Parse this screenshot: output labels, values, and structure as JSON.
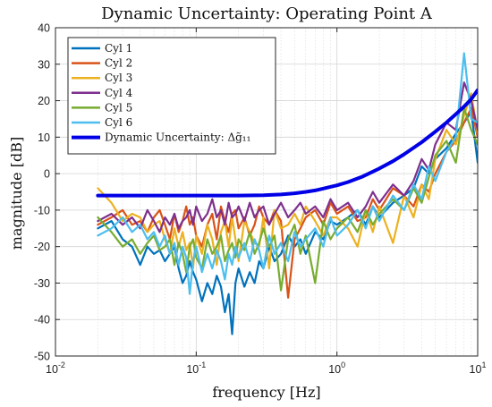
{
  "chart_data": {
    "type": "line",
    "title": "Dynamic Uncertainty: Operating Point A",
    "xlabel": "frequency [Hz]",
    "ylabel": "magnitude [dB]",
    "x_scale": "log",
    "xlim": [
      0.01,
      10
    ],
    "ylim": [
      -50,
      40
    ],
    "y_ticks": [
      -50,
      -40,
      -30,
      -20,
      -10,
      0,
      10,
      20,
      30,
      40
    ],
    "x_ticks": [
      {
        "base": "10",
        "exp": "-2"
      },
      {
        "base": "10",
        "exp": "-1"
      },
      {
        "base": "10",
        "exp": "0"
      },
      {
        "base": "10",
        "exp": "1"
      }
    ],
    "grid": true,
    "legend_position": "top-left",
    "series": [
      {
        "name": "Cyl 1",
        "color": "#0072BD",
        "x": [
          0.02,
          0.025,
          0.03,
          0.035,
          0.04,
          0.045,
          0.05,
          0.055,
          0.06,
          0.065,
          0.07,
          0.075,
          0.08,
          0.085,
          0.09,
          0.095,
          0.1,
          0.11,
          0.12,
          0.13,
          0.14,
          0.15,
          0.16,
          0.17,
          0.18,
          0.19,
          0.2,
          0.22,
          0.24,
          0.26,
          0.28,
          0.3,
          0.33,
          0.36,
          0.4,
          0.45,
          0.5,
          0.55,
          0.6,
          0.7,
          0.8,
          0.9,
          1.0,
          1.2,
          1.4,
          1.6,
          1.8,
          2.0,
          2.5,
          3.0,
          3.5,
          4.0,
          4.5,
          5.0,
          6.0,
          7.0,
          8.0,
          9.0,
          10.0
        ],
        "y": [
          -15,
          -13,
          -18,
          -20,
          -25,
          -20,
          -22,
          -21,
          -24,
          -22,
          -20,
          -26,
          -30,
          -28,
          -24,
          -27,
          -29,
          -35,
          -30,
          -33,
          -28,
          -31,
          -38,
          -33,
          -44,
          -30,
          -26,
          -31,
          -27,
          -30,
          -24,
          -26,
          -20,
          -24,
          -22,
          -17,
          -20,
          -18,
          -22,
          -16,
          -18,
          -13,
          -14,
          -12,
          -10,
          -14,
          -9,
          -12,
          -8,
          -6,
          -4,
          2,
          0,
          4,
          7,
          11,
          14,
          17,
          3
        ]
      },
      {
        "name": "Cyl 2",
        "color": "#D95319",
        "x": [
          0.02,
          0.025,
          0.03,
          0.035,
          0.04,
          0.045,
          0.05,
          0.055,
          0.06,
          0.065,
          0.07,
          0.075,
          0.08,
          0.085,
          0.09,
          0.095,
          0.1,
          0.11,
          0.12,
          0.13,
          0.14,
          0.15,
          0.16,
          0.17,
          0.18,
          0.19,
          0.2,
          0.22,
          0.24,
          0.26,
          0.28,
          0.3,
          0.33,
          0.36,
          0.4,
          0.45,
          0.5,
          0.55,
          0.6,
          0.7,
          0.8,
          0.9,
          1.0,
          1.2,
          1.4,
          1.6,
          1.8,
          2.0,
          2.5,
          3.0,
          3.5,
          4.0,
          4.5,
          5.0,
          6.0,
          7.0,
          8.0,
          9.0,
          10.0
        ],
        "y": [
          -14,
          -12,
          -10,
          -14,
          -13,
          -16,
          -12,
          -10,
          -14,
          -18,
          -11,
          -16,
          -13,
          -9,
          -14,
          -12,
          -17,
          -20,
          -14,
          -11,
          -18,
          -9,
          -13,
          -16,
          -11,
          -10,
          -15,
          -12,
          -17,
          -14,
          -9,
          -12,
          -14,
          -10,
          -13,
          -34,
          -18,
          -15,
          -12,
          -10,
          -14,
          -8,
          -11,
          -9,
          -13,
          -12,
          -7,
          -10,
          -4,
          -6,
          -9,
          -3,
          -5,
          0,
          6,
          9,
          14,
          18,
          10
        ]
      },
      {
        "name": "Cyl 3",
        "color": "#EDB120",
        "x": [
          0.02,
          0.025,
          0.03,
          0.035,
          0.04,
          0.045,
          0.05,
          0.055,
          0.06,
          0.065,
          0.07,
          0.075,
          0.08,
          0.085,
          0.09,
          0.095,
          0.1,
          0.11,
          0.12,
          0.13,
          0.14,
          0.15,
          0.16,
          0.17,
          0.18,
          0.19,
          0.2,
          0.22,
          0.24,
          0.26,
          0.28,
          0.3,
          0.33,
          0.36,
          0.4,
          0.45,
          0.5,
          0.55,
          0.6,
          0.7,
          0.8,
          0.9,
          1.0,
          1.2,
          1.4,
          1.6,
          1.8,
          2.0,
          2.5,
          3.0,
          3.5,
          4.0,
          4.5,
          5.0,
          6.0,
          7.0,
          8.0,
          9.0,
          10.0
        ],
        "y": [
          -4,
          -8,
          -13,
          -11,
          -12,
          -16,
          -14,
          -13,
          -18,
          -22,
          -15,
          -20,
          -16,
          -21,
          -19,
          -26,
          -17,
          -22,
          -14,
          -18,
          -25,
          -16,
          -13,
          -20,
          -12,
          -18,
          -24,
          -13,
          -16,
          -19,
          -20,
          -12,
          -26,
          -10,
          -15,
          -14,
          -11,
          -14,
          -9,
          -13,
          -17,
          -12,
          -12,
          -15,
          -20,
          -10,
          -16,
          -9,
          -19,
          -6,
          -12,
          -3,
          -7,
          4,
          12,
          8,
          16,
          22,
          11
        ]
      },
      {
        "name": "Cyl 4",
        "color": "#7E2F8E",
        "x": [
          0.02,
          0.025,
          0.03,
          0.035,
          0.04,
          0.045,
          0.05,
          0.055,
          0.06,
          0.065,
          0.07,
          0.075,
          0.08,
          0.085,
          0.09,
          0.095,
          0.1,
          0.11,
          0.12,
          0.13,
          0.14,
          0.15,
          0.16,
          0.17,
          0.18,
          0.19,
          0.2,
          0.22,
          0.24,
          0.26,
          0.28,
          0.3,
          0.33,
          0.36,
          0.4,
          0.45,
          0.5,
          0.55,
          0.6,
          0.7,
          0.8,
          0.9,
          1.0,
          1.2,
          1.4,
          1.6,
          1.8,
          2.0,
          2.5,
          3.0,
          3.5,
          4.0,
          4.5,
          5.0,
          6.0,
          7.0,
          8.0,
          9.0,
          10.0
        ],
        "y": [
          -13,
          -11,
          -14,
          -12,
          -15,
          -10,
          -13,
          -16,
          -12,
          -14,
          -11,
          -15,
          -13,
          -12,
          -10,
          -14,
          -9,
          -13,
          -11,
          -7,
          -12,
          -10,
          -14,
          -8,
          -12,
          -11,
          -9,
          -13,
          -8,
          -12,
          -10,
          -9,
          -14,
          -11,
          -8,
          -12,
          -10,
          -8,
          -11,
          -9,
          -12,
          -7,
          -10,
          -8,
          -12,
          -9,
          -5,
          -8,
          -3,
          -6,
          -2,
          4,
          1,
          8,
          14,
          12,
          25,
          20,
          12
        ]
      },
      {
        "name": "Cyl 5",
        "color": "#77AC30",
        "x": [
          0.02,
          0.025,
          0.03,
          0.035,
          0.04,
          0.045,
          0.05,
          0.055,
          0.06,
          0.065,
          0.07,
          0.075,
          0.08,
          0.085,
          0.09,
          0.095,
          0.1,
          0.11,
          0.12,
          0.13,
          0.14,
          0.15,
          0.16,
          0.17,
          0.18,
          0.19,
          0.2,
          0.22,
          0.24,
          0.26,
          0.28,
          0.3,
          0.33,
          0.36,
          0.4,
          0.45,
          0.5,
          0.55,
          0.6,
          0.7,
          0.8,
          0.9,
          1.0,
          1.2,
          1.4,
          1.6,
          1.8,
          2.0,
          2.5,
          3.0,
          3.5,
          4.0,
          4.5,
          5.0,
          6.0,
          7.0,
          8.0,
          9.0,
          10.0
        ],
        "y": [
          -12,
          -16,
          -20,
          -18,
          -22,
          -19,
          -17,
          -21,
          -20,
          -18,
          -25,
          -19,
          -22,
          -27,
          -20,
          -18,
          -23,
          -26,
          -18,
          -22,
          -20,
          -17,
          -24,
          -21,
          -19,
          -23,
          -18,
          -21,
          -16,
          -22,
          -19,
          -15,
          -20,
          -17,
          -32,
          -18,
          -14,
          -22,
          -17,
          -30,
          -13,
          -18,
          -15,
          -12,
          -16,
          -10,
          -14,
          -11,
          -7,
          -10,
          -4,
          -8,
          -1,
          5,
          9,
          3,
          18,
          12,
          8
        ]
      },
      {
        "name": "Cyl 6",
        "color": "#4DBEEE",
        "x": [
          0.02,
          0.025,
          0.03,
          0.035,
          0.04,
          0.045,
          0.05,
          0.055,
          0.06,
          0.065,
          0.07,
          0.075,
          0.08,
          0.085,
          0.09,
          0.095,
          0.1,
          0.11,
          0.12,
          0.13,
          0.14,
          0.15,
          0.16,
          0.17,
          0.18,
          0.19,
          0.2,
          0.22,
          0.24,
          0.26,
          0.28,
          0.3,
          0.33,
          0.36,
          0.4,
          0.45,
          0.5,
          0.55,
          0.6,
          0.7,
          0.8,
          0.9,
          1.0,
          1.2,
          1.4,
          1.6,
          1.8,
          2.0,
          2.5,
          3.0,
          3.5,
          4.0,
          4.5,
          5.0,
          6.0,
          7.0,
          8.0,
          9.0,
          10.0
        ],
        "y": [
          -17,
          -15,
          -12,
          -16,
          -14,
          -18,
          -16,
          -20,
          -17,
          -22,
          -19,
          -25,
          -20,
          -23,
          -33,
          -24,
          -20,
          -27,
          -22,
          -26,
          -21,
          -24,
          -29,
          -22,
          -25,
          -20,
          -23,
          -19,
          -24,
          -18,
          -21,
          -26,
          -17,
          -22,
          -19,
          -24,
          -16,
          -20,
          -18,
          -15,
          -20,
          -12,
          -17,
          -14,
          -10,
          -15,
          -9,
          -13,
          -6,
          -10,
          -3,
          -7,
          2,
          -2,
          6,
          10,
          33,
          15,
          14
        ]
      },
      {
        "name": "Dynamic Uncertainty: Δg̃₁₁",
        "color": "#0000E6",
        "x": [
          0.02,
          0.03,
          0.05,
          0.07,
          0.1,
          0.15,
          0.2,
          0.3,
          0.4,
          0.5,
          0.6,
          0.7,
          0.8,
          1.0,
          1.2,
          1.5,
          2.0,
          2.5,
          3.0,
          4.0,
          5.0,
          6.0,
          7.0,
          8.0,
          9.0,
          10.0
        ],
        "y": [
          -6,
          -6,
          -6,
          -6,
          -6,
          -6,
          -6,
          -5.9,
          -5.7,
          -5.4,
          -5.0,
          -4.6,
          -4.1,
          -3.2,
          -2.3,
          -0.9,
          1.4,
          3.4,
          5.3,
          8.6,
          11.5,
          14.0,
          16.3,
          18.4,
          20.4,
          22.9
        ]
      }
    ]
  }
}
